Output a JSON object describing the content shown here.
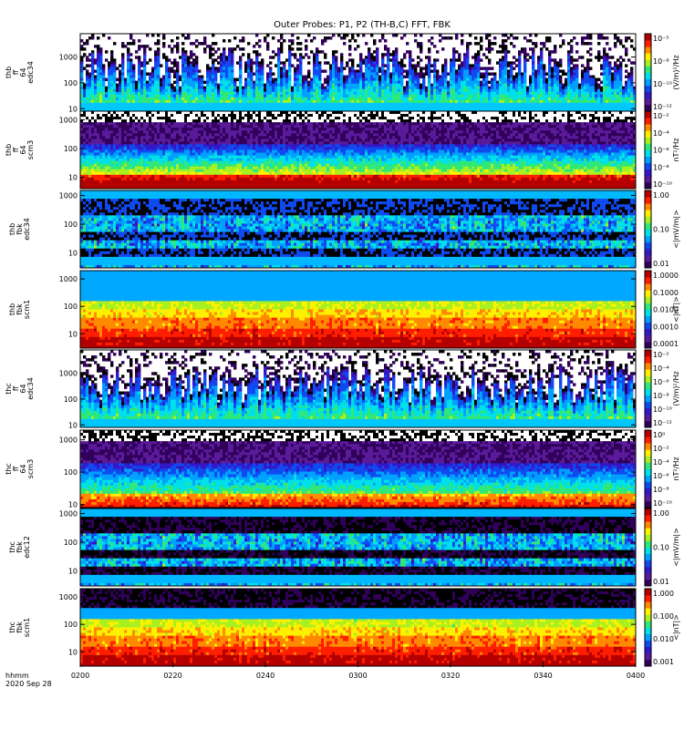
{
  "title": "Outer Probes: P1, P2 (TH-B,C) FFT, FBK",
  "footer": {
    "label": "hhmm",
    "date": "2020 Sep 28"
  },
  "chart_data": [
    {
      "type": "heatmap",
      "ylabel": [
        "thb",
        "ff",
        "64",
        "edc34"
      ],
      "ylog": true,
      "ylim": [
        8,
        8000
      ],
      "yticks": [
        {
          "v": 10,
          "t": "10"
        },
        {
          "v": 100,
          "t": "100"
        },
        {
          "v": 1000,
          "t": "1000"
        }
      ],
      "cbar_label": "(V/m)²/Hz",
      "cbar_ticks": [
        "10⁻⁵",
        "10⁻⁸",
        "10⁻¹⁰",
        "10⁻¹²"
      ],
      "pattern": "ffe",
      "seed": 11
    },
    {
      "type": "heatmap",
      "ylabel": [
        "thb",
        "ff",
        "64",
        "scm3"
      ],
      "ylog": true,
      "ylim": [
        4,
        2000
      ],
      "yticks": [
        {
          "v": 10,
          "t": "10"
        },
        {
          "v": 100,
          "t": "100"
        },
        {
          "v": 1000,
          "t": "1000"
        }
      ],
      "cbar_label": "nT²/Hz",
      "cbar_ticks": [
        "10⁻²",
        "10⁻⁴",
        "10⁻⁶",
        "10⁻⁸",
        "10⁻¹⁰"
      ],
      "pattern": "ffs",
      "seed": 23
    },
    {
      "type": "heatmap",
      "ylabel": [
        "thb",
        "fbk",
        "edc34"
      ],
      "ylog": true,
      "ylim": [
        3,
        1500
      ],
      "yticks": [
        {
          "v": 10,
          "t": "10"
        },
        {
          "v": 100,
          "t": "100"
        },
        {
          "v": 1000,
          "t": "1000"
        }
      ],
      "cbar_label": "<|mV/m|>",
      "cbar_ticks": [
        "1.00",
        "0.10",
        "0.01"
      ],
      "pattern": "fbe",
      "seed": 37
    },
    {
      "type": "heatmap",
      "ylabel": [
        "thb",
        "fbk",
        "scm1"
      ],
      "ylog": true,
      "ylim": [
        3,
        2000
      ],
      "yticks": [
        {
          "v": 10,
          "t": "10"
        },
        {
          "v": 100,
          "t": "100"
        },
        {
          "v": 1000,
          "t": "1000"
        }
      ],
      "cbar_label": "<|nT|>",
      "cbar_ticks": [
        "1.0000",
        "0.1000",
        "0.0100",
        "0.0010",
        "0.0001"
      ],
      "pattern": "fbs",
      "seed": 41
    },
    {
      "type": "heatmap",
      "ylabel": [
        "thc",
        "ff",
        "64",
        "edc34"
      ],
      "ylog": true,
      "ylim": [
        8,
        8000
      ],
      "yticks": [
        {
          "v": 10,
          "t": "10"
        },
        {
          "v": 100,
          "t": "100"
        },
        {
          "v": 1000,
          "t": "1000"
        }
      ],
      "cbar_label": "(V/m)²/Hz",
      "cbar_ticks": [
        "10⁻²",
        "10⁻⁴",
        "10⁻⁶",
        "10⁻⁸",
        "10⁻¹⁰",
        "10⁻¹²"
      ],
      "pattern": "ffe",
      "seed": 53
    },
    {
      "type": "heatmap",
      "ylabel": [
        "thc",
        "ff",
        "64",
        "scm3"
      ],
      "ylog": true,
      "ylim": [
        8,
        2000
      ],
      "yticks": [
        {
          "v": 10,
          "t": "10"
        },
        {
          "v": 100,
          "t": "100"
        },
        {
          "v": 1000,
          "t": "1000"
        }
      ],
      "cbar_label": "nT²/Hz",
      "cbar_ticks": [
        "10⁰",
        "10⁻²",
        "10⁻⁴",
        "10⁻⁶",
        "10⁻⁸",
        "10⁻¹⁰"
      ],
      "pattern": "ffs2",
      "seed": 67
    },
    {
      "type": "heatmap",
      "ylabel": [
        "thc",
        "fbk",
        "edc12"
      ],
      "ylog": true,
      "ylim": [
        3,
        1500
      ],
      "yticks": [
        {
          "v": 10,
          "t": "10"
        },
        {
          "v": 100,
          "t": "100"
        },
        {
          "v": 1000,
          "t": "1000"
        }
      ],
      "cbar_label": "<|mV/m|>",
      "cbar_ticks": [
        "1.00",
        "0.10",
        "0.01"
      ],
      "pattern": "fbe2",
      "seed": 79
    },
    {
      "type": "heatmap",
      "ylabel": [
        "thc",
        "fbk",
        "scm1"
      ],
      "ylog": true,
      "ylim": [
        3,
        2000
      ],
      "yticks": [
        {
          "v": 10,
          "t": "10"
        },
        {
          "v": 100,
          "t": "100"
        },
        {
          "v": 1000,
          "t": "1000"
        }
      ],
      "cbar_label": "<|nT|>",
      "cbar_ticks": [
        "1.000",
        "0.100",
        "0.010",
        "0.001"
      ],
      "pattern": "fbs2",
      "seed": 83
    }
  ],
  "xaxis": {
    "ticks": [
      "0200",
      "0220",
      "0240",
      "0300",
      "0320",
      "0340",
      "0400"
    ]
  },
  "colors": {
    "colormap": [
      "#ffffff",
      "#000000",
      "#30005a",
      "#5a1a9a",
      "#3418c8",
      "#0f4af0",
      "#00a0ff",
      "#00e0e8",
      "#30e878",
      "#a8f020",
      "#fff000",
      "#ff8a00",
      "#ff1e00",
      "#b40000"
    ]
  }
}
